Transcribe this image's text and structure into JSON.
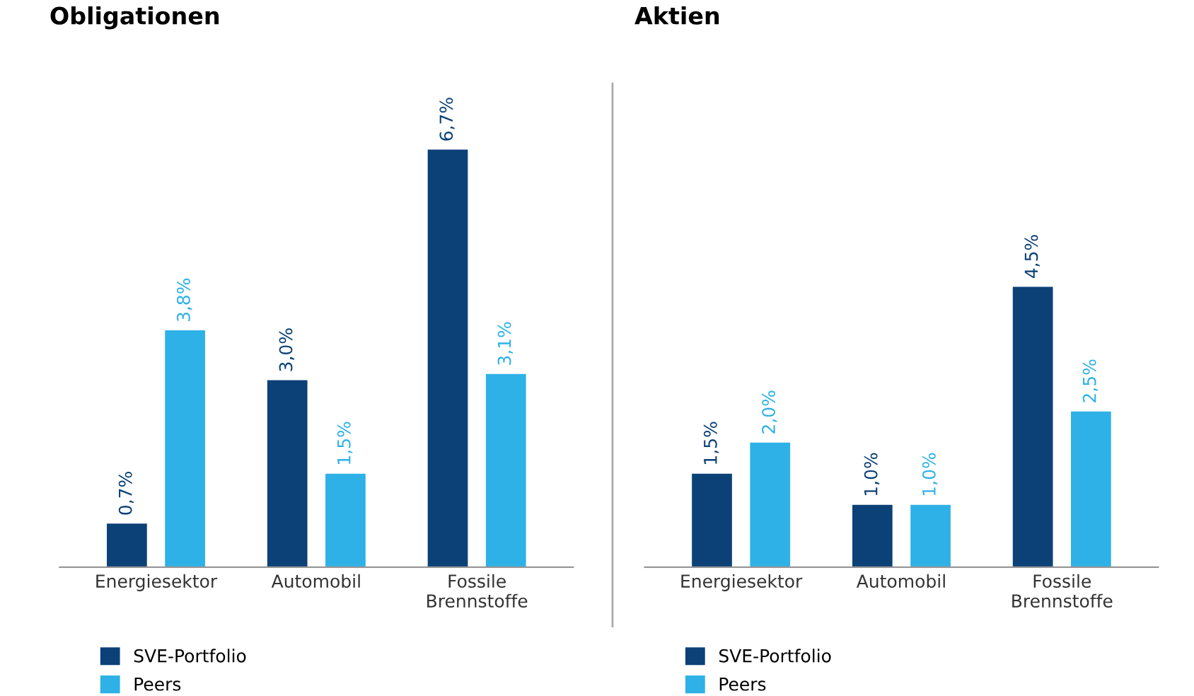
{
  "chart_data": [
    {
      "type": "bar",
      "title": "Obligationen",
      "categories": [
        "Energiesektor",
        "Automobil",
        "Fossile\nBrennstoffe"
      ],
      "tick_labels": "x",
      "legend": "bottom left",
      "grid": false,
      "series": [
        {
          "name": "SVE-Portfolio",
          "color": "#0b4177",
          "values": [
            0.7,
            3.0,
            6.7
          ],
          "value_labels": [
            "0,7%",
            "3,0%",
            "6,7%"
          ]
        },
        {
          "name": "Peers",
          "color": "#2eb1e6",
          "values": [
            3.8,
            1.5,
            3.1
          ],
          "value_labels": [
            "3,8%",
            "1,5%",
            "3,1%"
          ]
        }
      ]
    },
    {
      "type": "bar",
      "title": "Aktien",
      "categories": [
        "Energiesektor",
        "Automobil",
        "Fossile\nBrennstoffe"
      ],
      "tick_labels": "x",
      "legend": "bottom left",
      "grid": false,
      "series": [
        {
          "name": "SVE-Portfolio",
          "color": "#0b4177",
          "values": [
            1.5,
            1.0,
            4.5
          ],
          "value_labels": [
            "1,5%",
            "1,0%",
            "4,5%"
          ]
        },
        {
          "name": "Peers",
          "color": "#2eb1e6",
          "values": [
            2.0,
            1.0,
            2.5
          ],
          "value_labels": [
            "2,0%",
            "1,0%",
            "2,5%"
          ]
        }
      ]
    }
  ]
}
